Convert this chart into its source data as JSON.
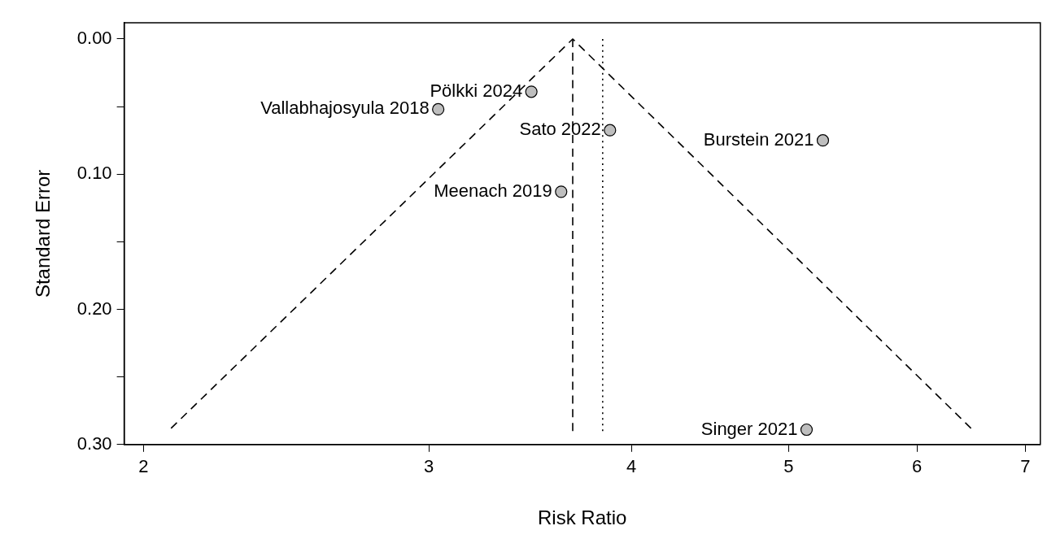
{
  "chart_data": {
    "type": "scatter",
    "xlabel": "Risk Ratio",
    "ylabel": "Standard Error",
    "log": "x",
    "grid": false,
    "legend": false,
    "marker": "circle",
    "xlim": [
      1.946,
      7.15
    ],
    "ylim": [
      0.3,
      -0.012
    ],
    "xticks": [
      2,
      3,
      4,
      5,
      6,
      7
    ],
    "yticks": [
      {
        "value": 0,
        "label": "0.00"
      },
      {
        "value": 0.05,
        "label": null
      },
      {
        "value": 0.1,
        "label": "0.10"
      },
      {
        "value": 0.15,
        "label": null
      },
      {
        "value": 0.2,
        "label": "0.20"
      },
      {
        "value": 0.25,
        "label": null
      },
      {
        "value": 0.3,
        "label": "0.30"
      }
    ],
    "series": [
      {
        "color": "#bebebe",
        "x": [
          3.47,
          3.04,
          3.88,
          5.25,
          3.62,
          5.13
        ],
        "values": [
          0.039,
          0.052,
          0.0675,
          0.075,
          0.113,
          0.289
        ]
      },
      {
        "type": "line",
        "marker": "none",
        "color": "#000000",
        "line_style": "dashed",
        "x": [
          2.08,
          3.68,
          6.48
        ],
        "values": [
          0.288,
          0,
          0.288
        ]
      },
      {
        "type": "line",
        "marker": "none",
        "color": "#000000",
        "line_style": "dashed",
        "x": [
          3.68,
          3.68
        ],
        "values": [
          0.29,
          0
        ]
      },
      {
        "type": "line",
        "marker": "none",
        "color": "#000000",
        "line_style": "dotted",
        "x": [
          3.84,
          3.84
        ],
        "values": [
          0.29,
          0
        ]
      }
    ],
    "annotations": [
      {
        "text": "Pölkki 2024",
        "x": 3.47,
        "y": 0.039
      },
      {
        "text": "Vallabhajosyula 2018",
        "x": 3.04,
        "y": 0.052
      },
      {
        "text": "Sato 2022",
        "x": 3.88,
        "y": 0.0675
      },
      {
        "text": "Burstein 2021",
        "x": 5.25,
        "y": 0.075
      },
      {
        "text": "Meenach 2019",
        "x": 3.62,
        "y": 0.113
      },
      {
        "text": "Singer 2021",
        "x": 5.13,
        "y": 0.289
      }
    ]
  }
}
